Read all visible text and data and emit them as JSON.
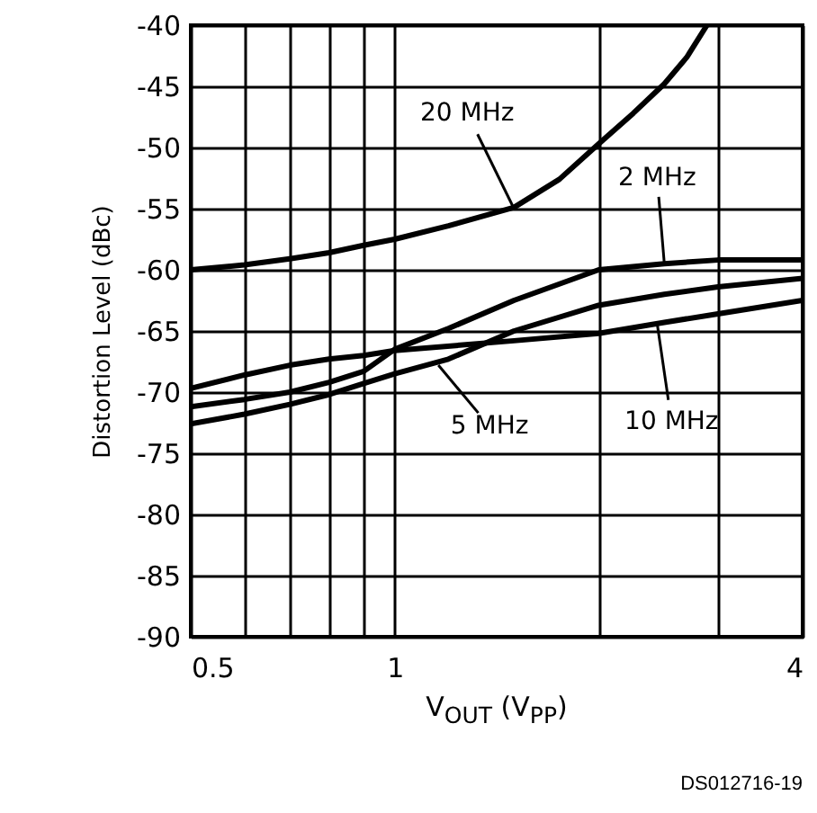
{
  "chart_data": {
    "type": "line",
    "xlabel": "V$_{OUT}$ (V$_{PP}$)",
    "ylabel": "Distortion Level (dBc)",
    "log": "x",
    "grid": true,
    "line_style": "solid",
    "marker": "none",
    "xlim": [
      0.5,
      4
    ],
    "xticks": [
      0.5,
      {
        "value": 0.6,
        "label": null
      },
      {
        "value": 0.7,
        "label": null
      },
      {
        "value": 0.8,
        "label": null
      },
      {
        "value": 0.9,
        "label": null
      },
      1,
      {
        "value": 2,
        "label": null
      },
      {
        "value": 3,
        "label": null
      },
      4
    ],
    "ylim": [
      -90,
      -40
    ],
    "yticks": [
      -90,
      -85,
      -80,
      -75,
      -70,
      -65,
      -60,
      -55,
      -50,
      -45,
      -40
    ],
    "series": [
      {
        "color": "#000000",
        "x": [
          0.5,
          0.6,
          0.7,
          0.8,
          0.9,
          1,
          1.2,
          1.5,
          1.75,
          2,
          2.25,
          2.5,
          2.7,
          2.89
        ],
        "values": [
          -60,
          -59.6,
          -59.1,
          -58.6,
          -58,
          -57.5,
          -56.4,
          -54.9,
          -52.6,
          -49.7,
          -47.2,
          -44.8,
          -42.6,
          -40
        ]
      },
      {
        "color": "#000000",
        "x": [
          0.5,
          0.6,
          0.7,
          0.8,
          0.9,
          1,
          1.2,
          1.5,
          2,
          2.5,
          3,
          4
        ],
        "values": [
          -71.2,
          -70.6,
          -70,
          -69.2,
          -68.3,
          -66.5,
          -64.8,
          -62.5,
          -60,
          -59.5,
          -59.2,
          -59.2
        ]
      },
      {
        "color": "#000000",
        "x": [
          0.5,
          0.6,
          0.7,
          0.8,
          0.9,
          1,
          1.2,
          1.5,
          2,
          2.5,
          3,
          4
        ],
        "values": [
          -72.6,
          -71.8,
          -71,
          -70.2,
          -69.3,
          -68.5,
          -67.3,
          -65,
          -62.9,
          -62,
          -61.4,
          -60.7
        ]
      },
      {
        "color": "#000000",
        "x": [
          0.5,
          0.6,
          0.7,
          0.8,
          0.9,
          1,
          1.5,
          2,
          2.5,
          3,
          4
        ],
        "values": [
          -69.7,
          -68.6,
          -67.8,
          -67.3,
          -67,
          -66.6,
          -65.8,
          -65.2,
          -64.3,
          -63.6,
          -62.5
        ]
      }
    ],
    "annotations": [
      {
        "text": "20 MHz",
        "x": 1.5,
        "y": -55
      },
      {
        "text": "2 MHz",
        "x": 2.5,
        "y": -59.5
      },
      {
        "text": "5 MHz",
        "x": 1.16,
        "y": -67.8
      },
      {
        "text": "10 MHz",
        "x": 2.44,
        "y": -64.4
      },
      "DS012716-19"
    ]
  }
}
